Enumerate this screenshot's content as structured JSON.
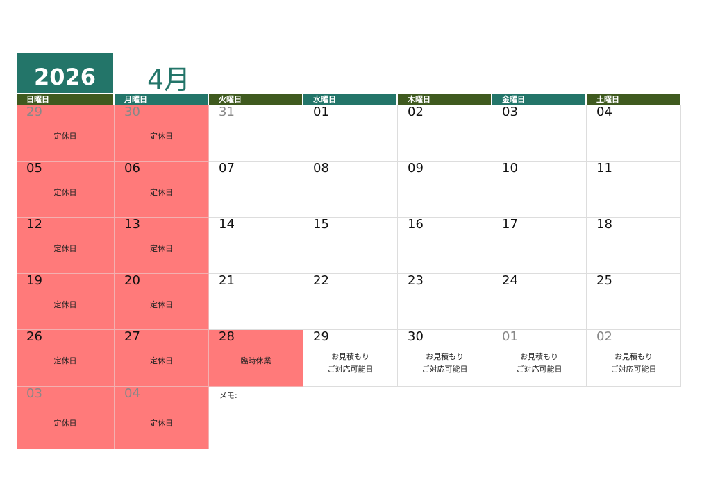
{
  "year": "2026",
  "month": "4月",
  "colors": {
    "teal": "#237569",
    "olive": "#3f5a1f",
    "holiday": "#ff7a7a"
  },
  "weekdays": [
    {
      "label": "日曜日",
      "color": "#3f5a1f"
    },
    {
      "label": "月曜日",
      "color": "#237569"
    },
    {
      "label": "火曜日",
      "color": "#3f5a1f"
    },
    {
      "label": "水曜日",
      "color": "#237569"
    },
    {
      "label": "木曜日",
      "color": "#3f5a1f"
    },
    {
      "label": "金曜日",
      "color": "#237569"
    },
    {
      "label": "土曜日",
      "color": "#3f5a1f"
    }
  ],
  "weeks": [
    [
      {
        "day": "29",
        "muted": true,
        "holiday": true,
        "note": "定休日"
      },
      {
        "day": "30",
        "muted": true,
        "holiday": true,
        "note": "定休日"
      },
      {
        "day": "31",
        "muted": true
      },
      {
        "day": "01"
      },
      {
        "day": "02"
      },
      {
        "day": "03"
      },
      {
        "day": "04"
      }
    ],
    [
      {
        "day": "05",
        "holiday": true,
        "note": "定休日"
      },
      {
        "day": "06",
        "holiday": true,
        "note": "定休日"
      },
      {
        "day": "07"
      },
      {
        "day": "08"
      },
      {
        "day": "09"
      },
      {
        "day": "10"
      },
      {
        "day": "11"
      }
    ],
    [
      {
        "day": "12",
        "holiday": true,
        "note": "定休日"
      },
      {
        "day": "13",
        "holiday": true,
        "note": "定休日"
      },
      {
        "day": "14"
      },
      {
        "day": "15"
      },
      {
        "day": "16"
      },
      {
        "day": "17"
      },
      {
        "day": "18"
      }
    ],
    [
      {
        "day": "19",
        "holiday": true,
        "note": "定休日"
      },
      {
        "day": "20",
        "holiday": true,
        "note": "定休日"
      },
      {
        "day": "21"
      },
      {
        "day": "22"
      },
      {
        "day": "23"
      },
      {
        "day": "24"
      },
      {
        "day": "25"
      }
    ],
    [
      {
        "day": "26",
        "holiday": true,
        "note": "定休日"
      },
      {
        "day": "27",
        "holiday": true,
        "note": "定休日"
      },
      {
        "day": "28",
        "holiday": true,
        "note": "臨時休業"
      },
      {
        "day": "29",
        "note": "お見積もり\nご対応可能日"
      },
      {
        "day": "30",
        "note": "お見積もり\nご対応可能日"
      },
      {
        "day": "01",
        "muted": true,
        "note": "お見積もり\nご対応可能日"
      },
      {
        "day": "02",
        "muted": true,
        "note": "お見積もり\nご対応可能日"
      }
    ],
    [
      {
        "day": "03",
        "muted": true,
        "holiday": true,
        "note": "定休日"
      },
      {
        "day": "04",
        "muted": true,
        "holiday": true,
        "note": "定休日"
      }
    ]
  ],
  "memo_label": "メモ:"
}
